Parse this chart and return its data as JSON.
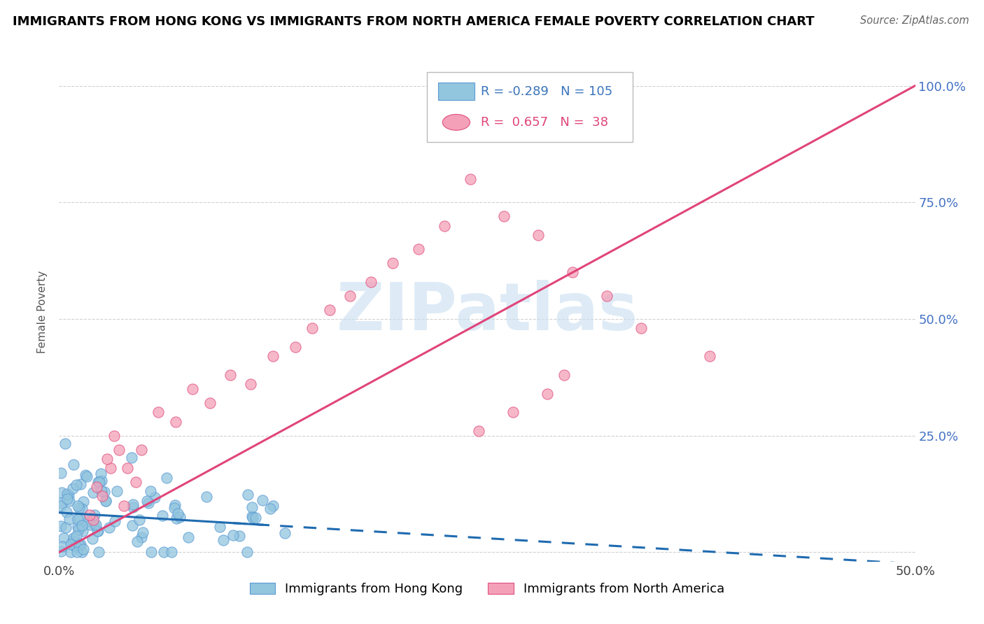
{
  "title": "IMMIGRANTS FROM HONG KONG VS IMMIGRANTS FROM NORTH AMERICA FEMALE POVERTY CORRELATION CHART",
  "source": "Source: ZipAtlas.com",
  "ylabel": "Female Poverty",
  "xlim": [
    0.0,
    0.5
  ],
  "ylim": [
    -0.02,
    1.05
  ],
  "hk_color": "#92c5de",
  "hk_edge_color": "#5b9bd5",
  "na_color": "#f4a0b8",
  "na_edge_color": "#e05080",
  "hk_line_color": "#1f6bb0",
  "na_line_color": "#e0457a",
  "R_hk": -0.289,
  "N_hk": 105,
  "R_na": 0.657,
  "N_na": 38,
  "watermark_text": "ZIPatlas",
  "watermark_color": "#c8dff0",
  "legend_labels": [
    "Immigrants from Hong Kong",
    "Immigrants from North America"
  ],
  "hk_line_x": [
    0.0,
    0.5
  ],
  "hk_line_y": [
    0.085,
    -0.025
  ],
  "na_line_x": [
    0.0,
    0.5
  ],
  "na_line_y": [
    0.0,
    1.0
  ]
}
